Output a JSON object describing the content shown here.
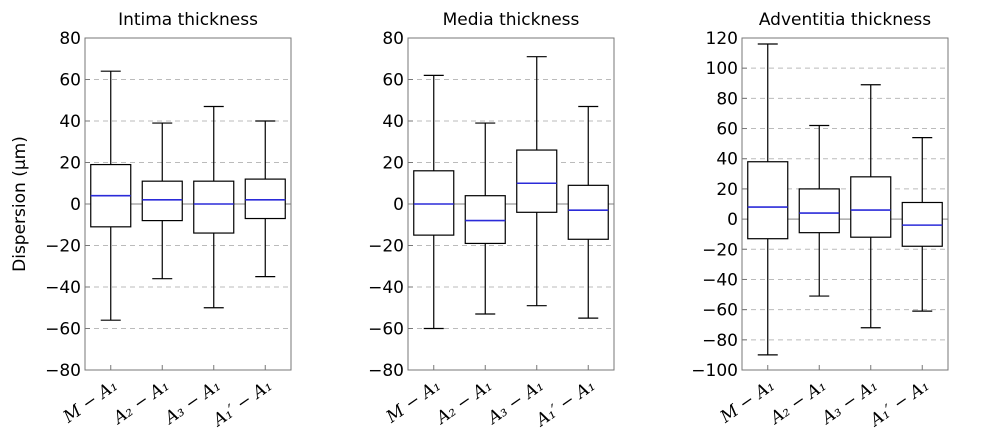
{
  "figure": {
    "ylabel": "Dispersion (µm)",
    "categories": [
      "M − A₁",
      "A₂ − A₁",
      "A₃ − A₁",
      "A₁′ − A₁"
    ]
  },
  "chart_data": [
    {
      "type": "box",
      "title": "Intima thickness",
      "ylim": [
        -80,
        80
      ],
      "yticks": [
        -80,
        -60,
        -40,
        -20,
        0,
        20,
        40,
        60,
        80
      ],
      "grid": "dashed horizontal",
      "categories": [
        "M − A₁",
        "A₂ − A₁",
        "A₃ − A₁",
        "A₁′ − A₁"
      ],
      "boxes": [
        {
          "whisker_low": -56,
          "q1": -11,
          "median": 4,
          "q3": 19,
          "whisker_high": 64
        },
        {
          "whisker_low": -36,
          "q1": -8,
          "median": 2,
          "q3": 11,
          "whisker_high": 39
        },
        {
          "whisker_low": -50,
          "q1": -14,
          "median": 0,
          "q3": 11,
          "whisker_high": 47
        },
        {
          "whisker_low": -35,
          "q1": -7,
          "median": 2,
          "q3": 12,
          "whisker_high": 40
        }
      ]
    },
    {
      "type": "box",
      "title": "Media thickness",
      "ylim": [
        -80,
        80
      ],
      "yticks": [
        -80,
        -60,
        -40,
        -20,
        0,
        20,
        40,
        60,
        80
      ],
      "grid": "dashed horizontal",
      "categories": [
        "M − A₁",
        "A₂ − A₁",
        "A₃ − A₁",
        "A₁′ − A₁"
      ],
      "boxes": [
        {
          "whisker_low": -60,
          "q1": -15,
          "median": 0,
          "q3": 16,
          "whisker_high": 62
        },
        {
          "whisker_low": -53,
          "q1": -19,
          "median": -8,
          "q3": 4,
          "whisker_high": 39
        },
        {
          "whisker_low": -49,
          "q1": -4,
          "median": 10,
          "q3": 26,
          "whisker_high": 71
        },
        {
          "whisker_low": -55,
          "q1": -17,
          "median": -3,
          "q3": 9,
          "whisker_high": 47
        }
      ]
    },
    {
      "type": "box",
      "title": "Adventitia thickness",
      "ylim": [
        -100,
        120
      ],
      "yticks": [
        -100,
        -80,
        -60,
        -40,
        -20,
        0,
        20,
        40,
        60,
        80,
        100,
        120
      ],
      "grid": "dashed horizontal",
      "categories": [
        "M − A₁",
        "A₂ − A₁",
        "A₃ − A₁",
        "A₁′ − A₁"
      ],
      "boxes": [
        {
          "whisker_low": -90,
          "q1": -13,
          "median": 8,
          "q3": 38,
          "whisker_high": 116
        },
        {
          "whisker_low": -51,
          "q1": -9,
          "median": 4,
          "q3": 20,
          "whisker_high": 62
        },
        {
          "whisker_low": -72,
          "q1": -12,
          "median": 6,
          "q3": 28,
          "whisker_high": 89
        },
        {
          "whisker_low": -61,
          "q1": -18,
          "median": -4,
          "q3": 11,
          "whisker_high": 54
        }
      ]
    }
  ],
  "colors": {
    "median": "#2b2bd9",
    "box": "#000000",
    "grid": "#bbbbbb",
    "zero_line": "#999999",
    "axes": "#777777"
  }
}
